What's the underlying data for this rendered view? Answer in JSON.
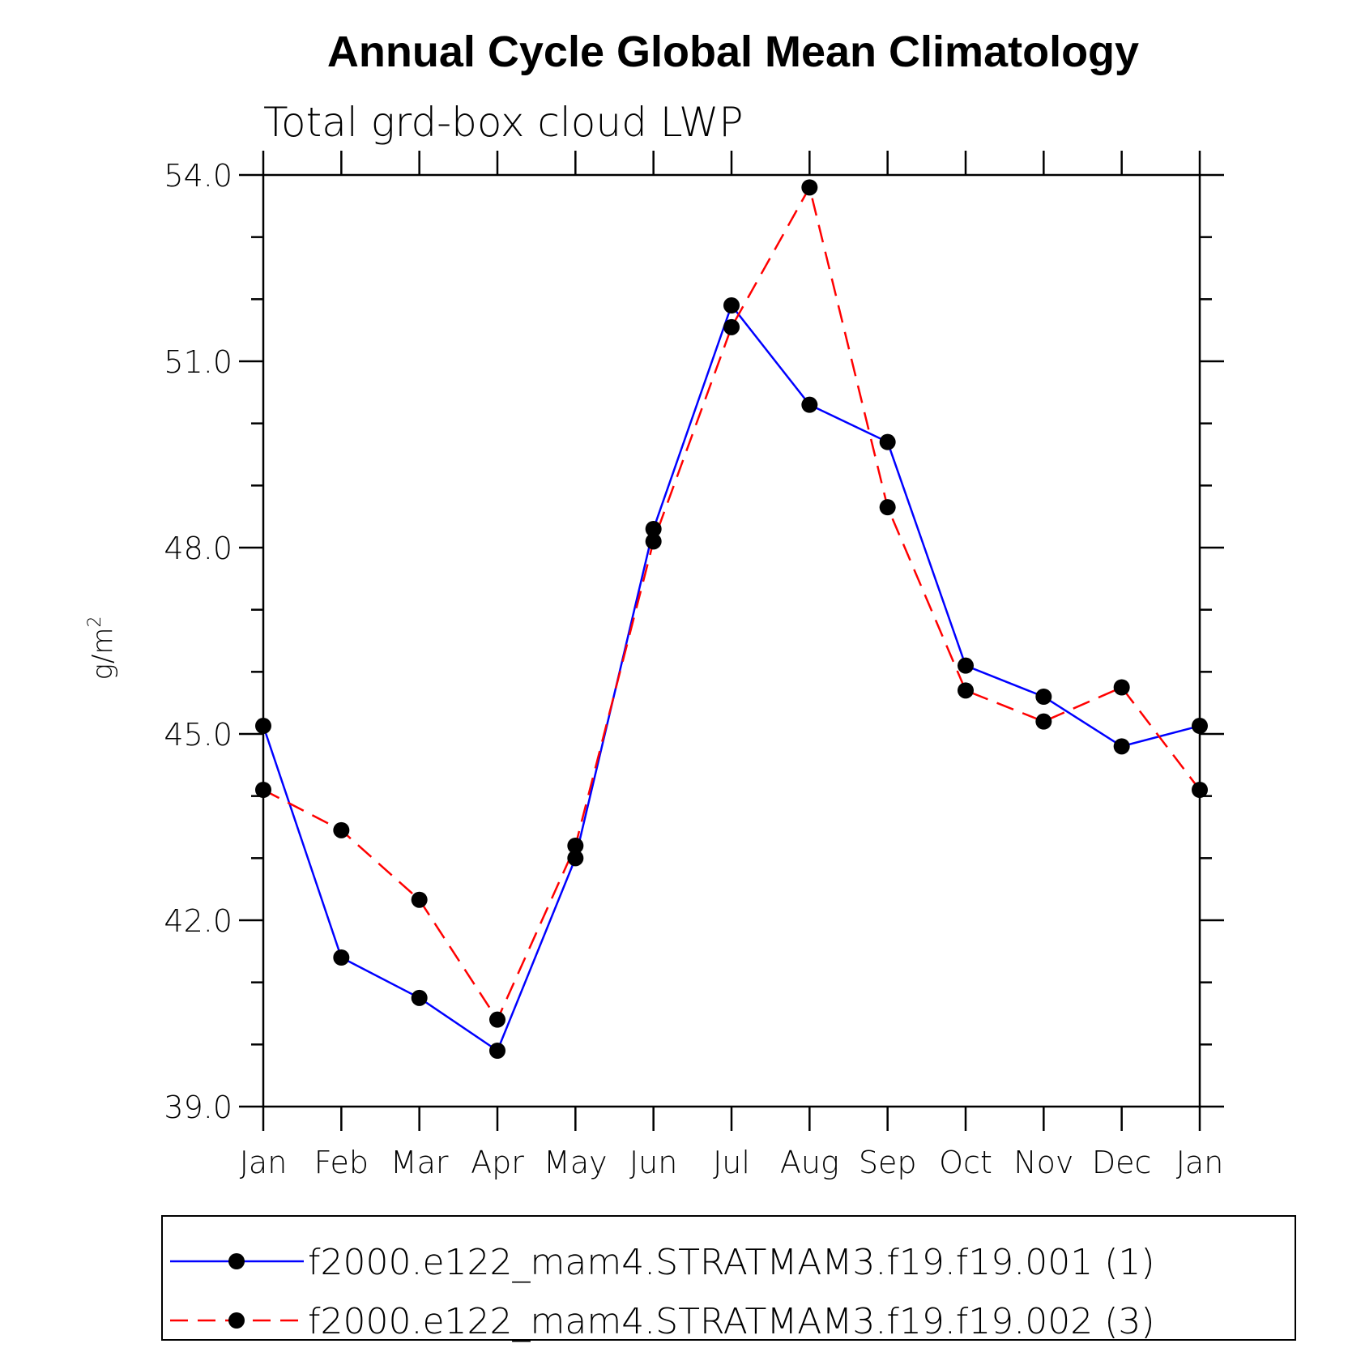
{
  "chart_data": {
    "type": "line",
    "title": "Annual Cycle Global Mean Climatology",
    "subtitle": "Total grd-box cloud LWP",
    "ylabel_main": "g/m",
    "ylabel_sup": "2",
    "ylim": [
      39.0,
      54.0
    ],
    "yticks": [
      "39.0",
      "42.0",
      "45.0",
      "48.0",
      "51.0",
      "54.0"
    ],
    "categories": [
      "Jan",
      "Feb",
      "Mar",
      "Apr",
      "May",
      "Jun",
      "Jul",
      "Aug",
      "Sep",
      "Oct",
      "Nov",
      "Dec",
      "Jan"
    ],
    "series": [
      {
        "name": "f2000.e122_mam4.STRATMAM3.f19.f19.001 (1)",
        "color": "#0000ff",
        "dash": "solid",
        "values": [
          45.13,
          41.4,
          40.75,
          39.9,
          43.0,
          48.3,
          51.9,
          50.3,
          49.7,
          46.1,
          45.6,
          44.8,
          45.13
        ]
      },
      {
        "name": "f2000.e122_mam4.STRATMAM3.f19.f19.002 (3)",
        "color": "#ff0000",
        "dash": "dashed",
        "values": [
          44.1,
          43.45,
          42.33,
          40.4,
          43.2,
          48.1,
          51.55,
          53.8,
          48.65,
          45.7,
          45.2,
          45.75,
          44.1
        ]
      }
    ]
  }
}
